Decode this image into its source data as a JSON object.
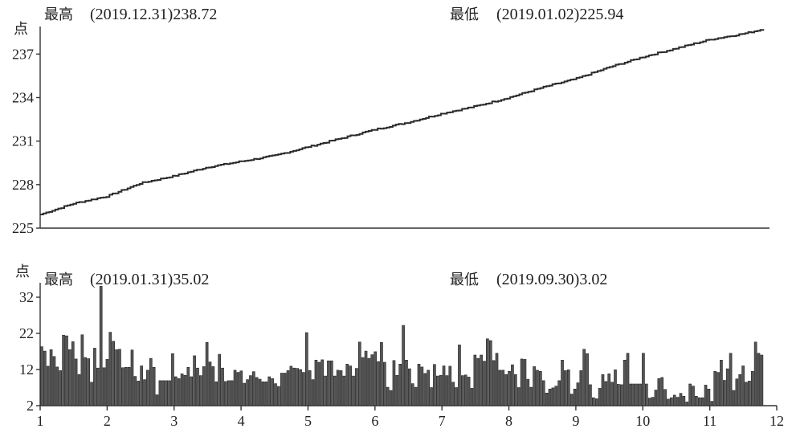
{
  "top_panel": {
    "high_label": "最高",
    "high_value": "(2019.12.31)238.72",
    "low_label": "最低",
    "low_value": "(2019.01.02)225.94",
    "unit": "点"
  },
  "bottom_panel": {
    "high_label": "最高",
    "high_value": "(2019.01.31)35.02",
    "low_label": "最低",
    "low_value": "(2019.09.30)3.02",
    "unit": "点"
  },
  "x_tick_labels": [
    "1",
    "2",
    "3",
    "4",
    "5",
    "6",
    "7",
    "8",
    "9",
    "10",
    "11",
    "12"
  ],
  "chart_data": [
    {
      "type": "line",
      "ylim": [
        225,
        238.9
      ],
      "yticks": [
        225,
        228,
        231,
        234,
        237
      ],
      "ytick_labels": [
        "225",
        "228",
        "231",
        "234",
        "237"
      ],
      "xlim": [
        1,
        12
      ],
      "grid": false,
      "x": [
        1.0,
        1.5,
        2.0,
        2.5,
        3.0,
        3.5,
        4.0,
        4.5,
        5.0,
        5.5,
        6.0,
        6.5,
        7.0,
        7.5,
        8.0,
        8.5,
        9.0,
        9.5,
        10.0,
        10.5,
        11.0,
        11.5,
        11.8
      ],
      "y": [
        225.94,
        226.7,
        227.2,
        228.1,
        228.6,
        229.2,
        229.6,
        230.0,
        230.6,
        231.2,
        231.8,
        232.3,
        232.9,
        233.4,
        234.0,
        234.7,
        235.3,
        236.1,
        236.8,
        237.4,
        238.0,
        238.4,
        238.72
      ]
    },
    {
      "type": "bar",
      "ylim": [
        2,
        36
      ],
      "yticks": [
        2,
        12,
        22,
        32
      ],
      "ytick_labels": [
        "2",
        "12",
        "22",
        "32"
      ],
      "xlim": [
        1,
        12
      ],
      "grid": false,
      "x_start": 1.0,
      "x_end": 11.8,
      "values": [
        18.3,
        17.1,
        12.9,
        17.5,
        15.6,
        12.7,
        11.7,
        21.5,
        21.3,
        17.5,
        19.7,
        14.9,
        10.6,
        21.6,
        15.3,
        15.0,
        8.5,
        17.9,
        12.4,
        35.02,
        12.5,
        14.8,
        22.3,
        19.8,
        17.5,
        17.6,
        12.5,
        12.6,
        12.6,
        17.4,
        10.1,
        8.8,
        13.0,
        9.2,
        11.8,
        15.1,
        12.6,
        5.0,
        8.9,
        8.9,
        8.9,
        8.9,
        16.4,
        10.0,
        9.5,
        10.8,
        10.4,
        12.6,
        10.0,
        15.8,
        12.4,
        10.3,
        12.8,
        19.5,
        14.1,
        12.8,
        8.6,
        16.2,
        12.4,
        8.7,
        8.9,
        8.9,
        11.8,
        11.2,
        11.6,
        8.2,
        9.2,
        10.3,
        11.4,
        9.8,
        9.3,
        8.6,
        8.6,
        10.0,
        9.5,
        8.1,
        7.3,
        11.0,
        11.0,
        11.7,
        12.9,
        12.4,
        12.3,
        12.0,
        11.2,
        22.2,
        11.7,
        9.2,
        14.6,
        14.0,
        14.7,
        10.2,
        14.4,
        14.4,
        10.2,
        11.8,
        11.7,
        10.2,
        13.5,
        13.0,
        10.2,
        12.3,
        19.6,
        15.3,
        17.1,
        15.1,
        16.1,
        16.9,
        14.2,
        19.5,
        14.0,
        7.1,
        6.2,
        14.5,
        10.4,
        13.5,
        24.2,
        14.6,
        12.2,
        8.1,
        7.1,
        13.5,
        12.7,
        10.9,
        11.8,
        7.0,
        13.4,
        10.2,
        10.4,
        13.0,
        10.3,
        12.9,
        8.5,
        7.0,
        18.8,
        10.3,
        10.5,
        9.9,
        6.8,
        16.0,
        15.1,
        16.0,
        14.3,
        20.5,
        20.0,
        14.5,
        16.5,
        11.8,
        11.8,
        10.6,
        11.5,
        13.3,
        10.6,
        7.0,
        14.9,
        14.8,
        9.3,
        7.1,
        12.8,
        11.8,
        11.5,
        8.9,
        5.5,
        6.6,
        6.9,
        7.4,
        8.9,
        14.6,
        11.7,
        11.9,
        5.2,
        6.6,
        8.3,
        11.7,
        17.6,
        16.4,
        7.8,
        4.2,
        3.9,
        6.8,
        10.6,
        8.7,
        10.8,
        8.5,
        11.9,
        7.9,
        7.8,
        14.6,
        16.5,
        8.0,
        8.0,
        8.0,
        8.0,
        16.5,
        8.0,
        4.1,
        4.3,
        6.3,
        9.5,
        9.8,
        6.5,
        3.8,
        4.2,
        4.9,
        4.3,
        5.4,
        4.6,
        3.02,
        8.0,
        7.4,
        4.6,
        4.2,
        4.2,
        7.7,
        6.6,
        3.2,
        11.5,
        11.2,
        14.6,
        9.0,
        12.2,
        16.5,
        6.2,
        9.4,
        10.6,
        13.0,
        8.5,
        8.8,
        11.5,
        19.6,
        16.5,
        16.0
      ]
    }
  ]
}
